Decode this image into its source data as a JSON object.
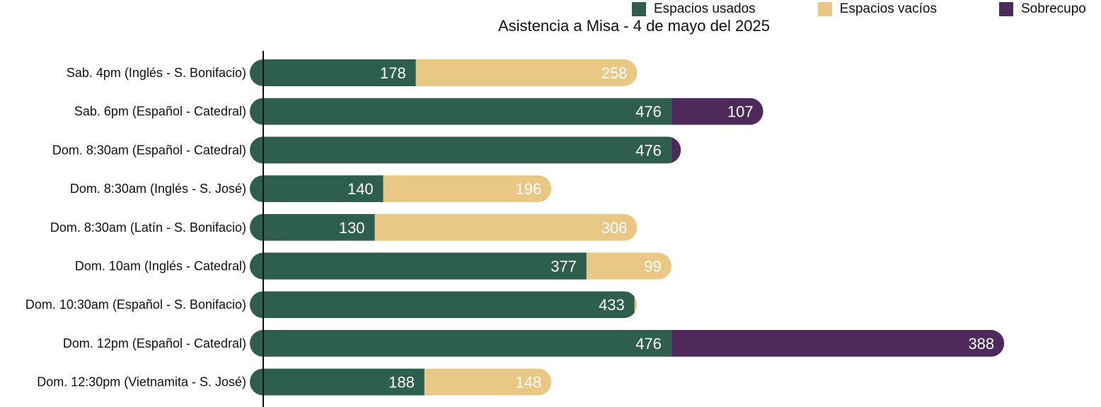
{
  "chart_data": {
    "type": "bar",
    "orientation": "horizontal",
    "stacked": true,
    "title": "Asistencia a Misa - 4 de mayo del 2025",
    "legend_position": "top-right",
    "categories": [
      "Sab. 4pm (Inglés - S. Bonifacio)",
      "Sab. 6pm (Español - Catedral)",
      "Dom. 8:30am (Español - Catedral)",
      "Dom. 8:30am (Inglés - S. José)",
      "Dom. 8:30am (Latín - S. Bonifacio)",
      "Dom. 10am (Inglés - Catedral)",
      "Dom. 10:30am (Español - S. Bonifacio)",
      "Dom. 12pm (Español - Catedral)",
      "Dom. 12:30pm (Vietnamita - S. José)"
    ],
    "series": [
      {
        "name": "Espacios usados",
        "color": "#2e5e4e",
        "values": [
          178,
          476,
          476,
          140,
          130,
          377,
          433,
          476,
          188
        ]
      },
      {
        "name": "Espacios vacíos",
        "color": "#e8c884",
        "values": [
          258,
          0,
          0,
          196,
          306,
          99,
          3,
          0,
          148
        ]
      },
      {
        "name": "Sobrecupo",
        "color": "#4e2a5c",
        "values": [
          0,
          107,
          11,
          0,
          0,
          0,
          0,
          388,
          0
        ]
      }
    ],
    "labels_hidden_below": 20,
    "xlim": [
      0,
      900
    ],
    "grid": false
  }
}
